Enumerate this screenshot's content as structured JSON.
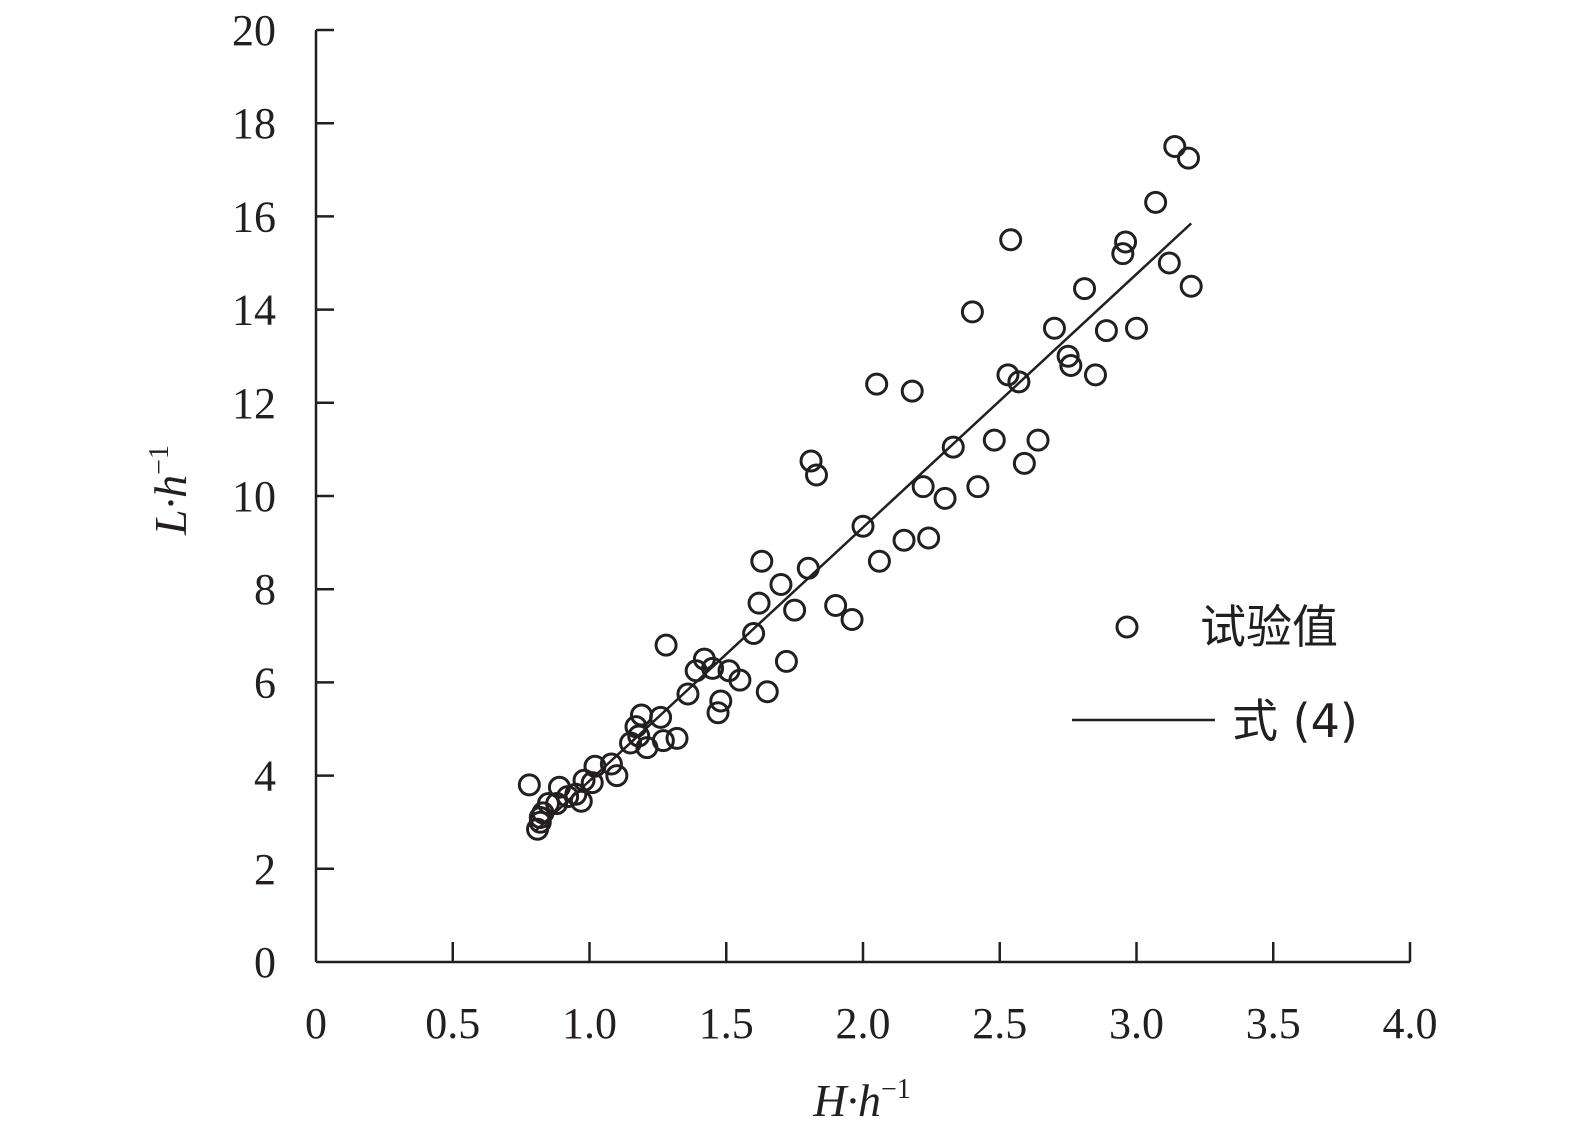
{
  "chart_data": {
    "type": "scatter",
    "xlabel": {
      "base": "H·h",
      "sup": "−1"
    },
    "ylabel": {
      "base": "L·h",
      "sup": "−1"
    },
    "xlim": [
      0,
      4.0
    ],
    "ylim": [
      0,
      20
    ],
    "x_ticks": [
      0,
      0.5,
      1.0,
      1.5,
      2.0,
      2.5,
      3.0,
      3.5,
      4.0
    ],
    "x_tick_labels": [
      "0",
      "0.5",
      "1.0",
      "1.5",
      "2.0",
      "2.5",
      "3.0",
      "3.5",
      "4.0"
    ],
    "y_ticks": [
      0,
      2,
      4,
      6,
      8,
      10,
      12,
      14,
      16,
      18,
      20
    ],
    "y_tick_labels": [
      "0",
      "2",
      "4",
      "6",
      "8",
      "10",
      "12",
      "14",
      "16",
      "18",
      "20"
    ],
    "grid": false,
    "legend_position": "right",
    "series": [
      {
        "name": "试验值",
        "type": "scatter",
        "marker": "open-circle",
        "points": [
          [
            0.78,
            3.8
          ],
          [
            0.81,
            2.85
          ],
          [
            0.82,
            3.0
          ],
          [
            0.82,
            3.1
          ],
          [
            0.83,
            3.2
          ],
          [
            0.85,
            3.4
          ],
          [
            0.88,
            3.4
          ],
          [
            0.89,
            3.75
          ],
          [
            0.92,
            3.55
          ],
          [
            0.95,
            3.6
          ],
          [
            0.97,
            3.45
          ],
          [
            0.98,
            3.9
          ],
          [
            1.01,
            3.85
          ],
          [
            1.02,
            4.2
          ],
          [
            1.08,
            4.25
          ],
          [
            1.1,
            4.0
          ],
          [
            1.15,
            4.7
          ],
          [
            1.17,
            5.05
          ],
          [
            1.18,
            4.85
          ],
          [
            1.19,
            5.3
          ],
          [
            1.21,
            4.6
          ],
          [
            1.26,
            5.25
          ],
          [
            1.27,
            4.75
          ],
          [
            1.28,
            6.8
          ],
          [
            1.32,
            4.8
          ],
          [
            1.36,
            5.75
          ],
          [
            1.39,
            6.25
          ],
          [
            1.42,
            6.5
          ],
          [
            1.45,
            6.3
          ],
          [
            1.47,
            5.35
          ],
          [
            1.48,
            5.6
          ],
          [
            1.51,
            6.25
          ],
          [
            1.55,
            6.05
          ],
          [
            1.6,
            7.05
          ],
          [
            1.62,
            7.7
          ],
          [
            1.63,
            8.6
          ],
          [
            1.65,
            5.8
          ],
          [
            1.7,
            8.1
          ],
          [
            1.72,
            6.45
          ],
          [
            1.75,
            7.55
          ],
          [
            1.8,
            8.45
          ],
          [
            1.81,
            10.75
          ],
          [
            1.83,
            10.45
          ],
          [
            1.9,
            7.65
          ],
          [
            1.96,
            7.35
          ],
          [
            2.0,
            9.35
          ],
          [
            2.05,
            12.4
          ],
          [
            2.06,
            8.6
          ],
          [
            2.15,
            9.05
          ],
          [
            2.18,
            12.25
          ],
          [
            2.22,
            10.2
          ],
          [
            2.24,
            9.1
          ],
          [
            2.3,
            9.95
          ],
          [
            2.33,
            11.05
          ],
          [
            2.4,
            13.95
          ],
          [
            2.42,
            10.2
          ],
          [
            2.48,
            11.2
          ],
          [
            2.53,
            12.6
          ],
          [
            2.54,
            15.5
          ],
          [
            2.57,
            12.45
          ],
          [
            2.59,
            10.7
          ],
          [
            2.64,
            11.2
          ],
          [
            2.7,
            13.6
          ],
          [
            2.75,
            13.0
          ],
          [
            2.76,
            12.8
          ],
          [
            2.81,
            14.45
          ],
          [
            2.85,
            12.6
          ],
          [
            2.89,
            13.55
          ],
          [
            2.95,
            15.2
          ],
          [
            2.96,
            15.45
          ],
          [
            3.0,
            13.6
          ],
          [
            3.07,
            16.3
          ],
          [
            3.12,
            15.0
          ],
          [
            3.14,
            17.5
          ],
          [
            3.19,
            17.25
          ],
          [
            3.2,
            14.5
          ]
        ]
      },
      {
        "name": "式 (4)",
        "type": "line",
        "points": [
          [
            0.8,
            2.8
          ],
          [
            3.2,
            15.85
          ]
        ]
      }
    ]
  },
  "legend": {
    "items": [
      {
        "label": "试验值",
        "symbol": "circle"
      },
      {
        "label": "式 (4)",
        "symbol": "line"
      }
    ]
  }
}
